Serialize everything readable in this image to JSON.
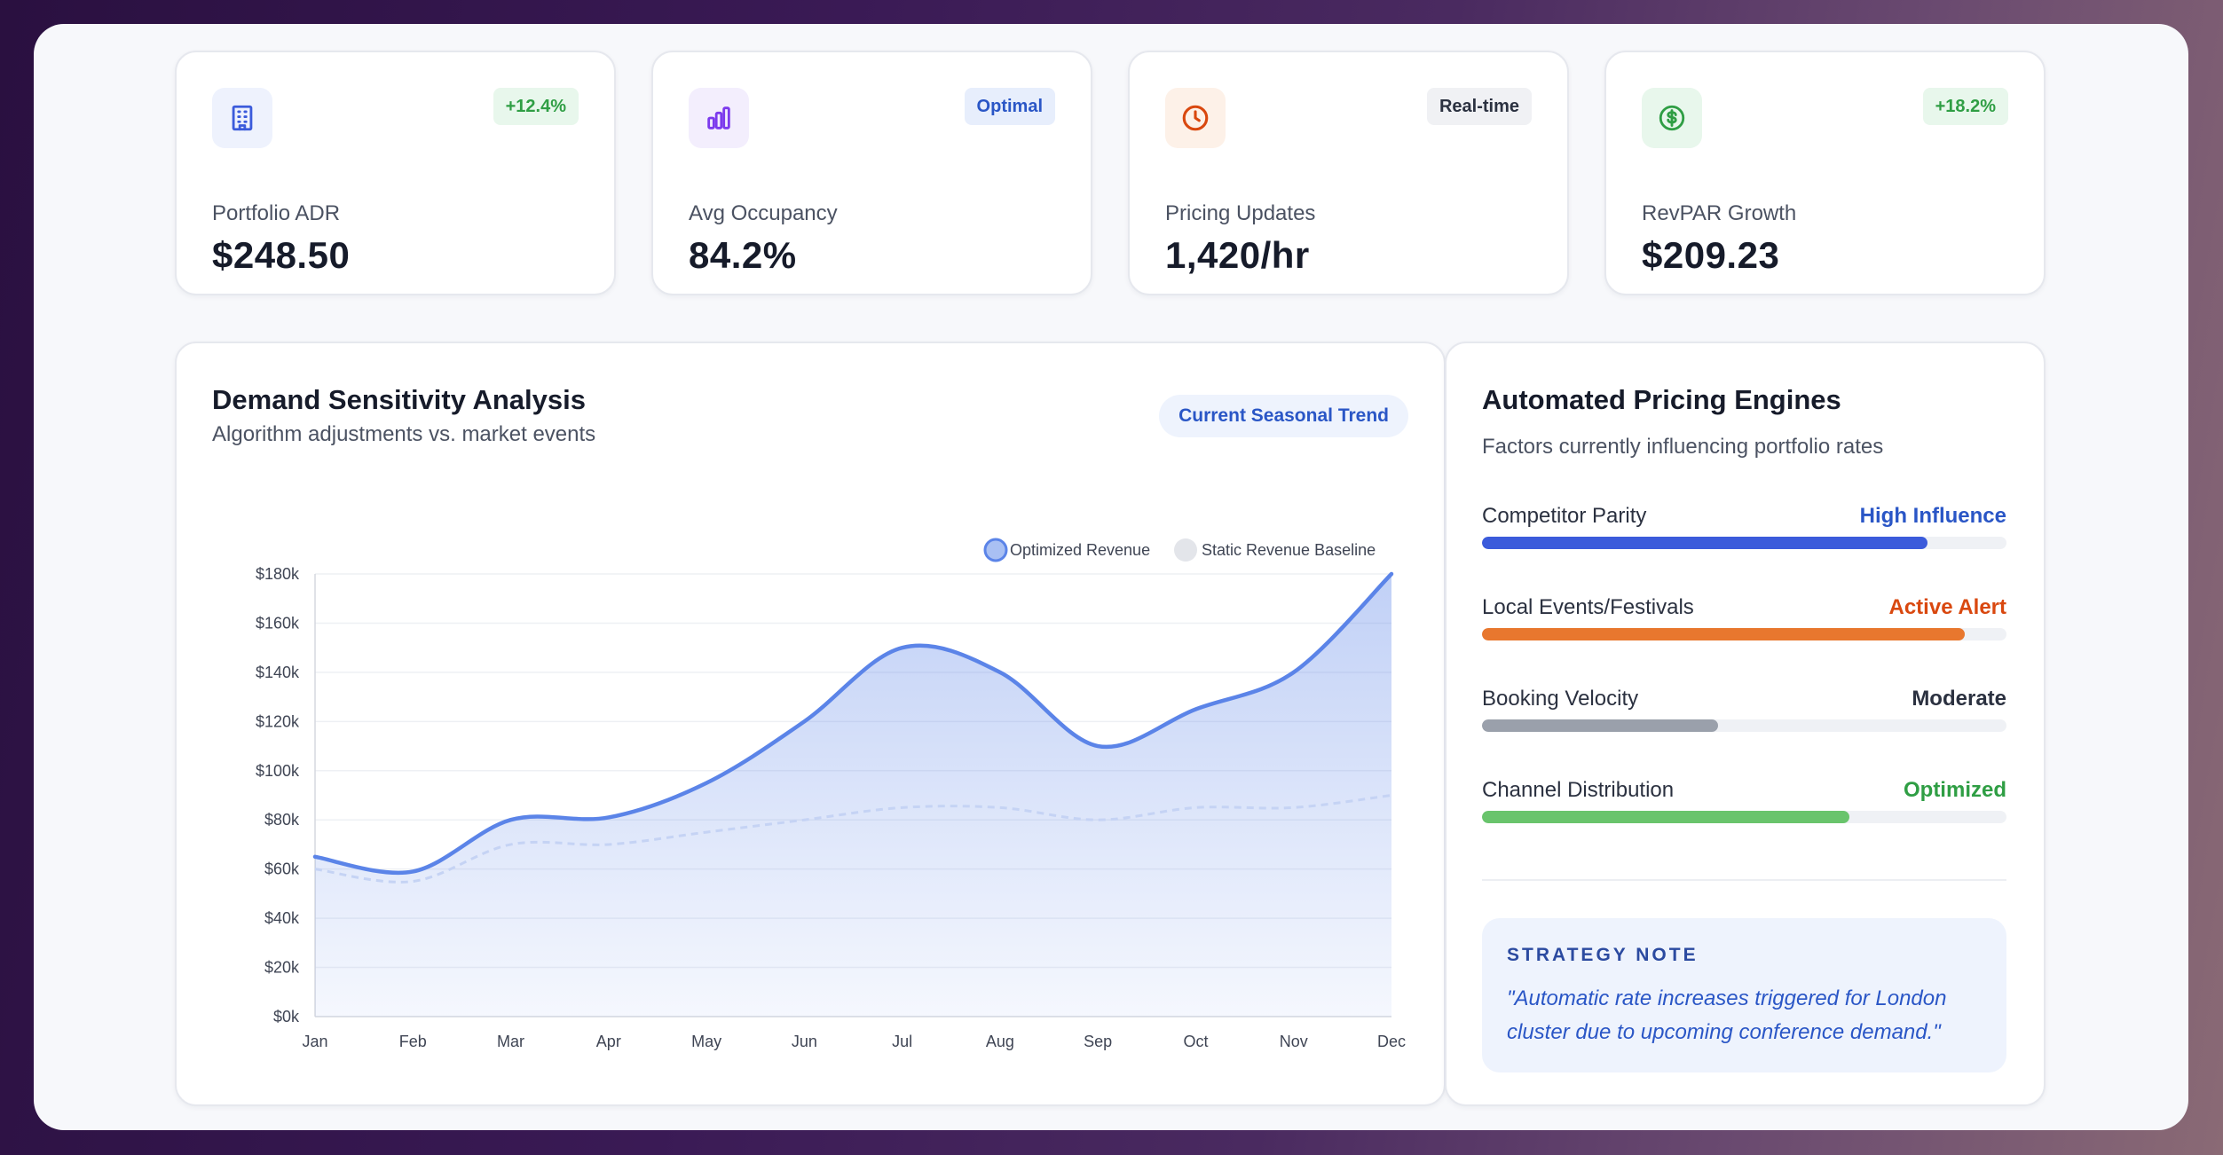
{
  "stats": [
    {
      "label": "Portfolio ADR",
      "value": "$248.50",
      "badge": "+12.4%",
      "icon": "building-icon",
      "icon_color": "#3b5bdb",
      "icon_bg": "#eef2fd",
      "badge_color": "#2f9e44",
      "badge_bg": "#e8f7ec"
    },
    {
      "label": "Avg Occupancy",
      "value": "84.2%",
      "badge": "Optimal",
      "icon": "bar-chart-icon",
      "icon_color": "#7c3aed",
      "icon_bg": "#f3eefd",
      "badge_color": "#2a56c6",
      "badge_bg": "#e7eefc"
    },
    {
      "label": "Pricing Updates",
      "value": "1,420/hr",
      "badge": "Real-time",
      "icon": "clock-icon",
      "icon_color": "#d9480f",
      "icon_bg": "#fdf1e8",
      "badge_color": "#2b3140",
      "badge_bg": "#f0f1f4"
    },
    {
      "label": "RevPAR Growth",
      "value": "$209.23",
      "badge": "+18.2%",
      "icon": "dollar-circle-icon",
      "icon_color": "#2f9e44",
      "icon_bg": "#e8f7ec",
      "badge_color": "#2f9e44",
      "badge_bg": "#e8f7ec"
    }
  ],
  "demand": {
    "title": "Demand Sensitivity Analysis",
    "subtitle": "Algorithm adjustments vs. market events",
    "pill": "Current Seasonal Trend"
  },
  "chart_data": {
    "type": "area",
    "categories": [
      "Jan",
      "Feb",
      "Mar",
      "Apr",
      "May",
      "Jun",
      "Jul",
      "Aug",
      "Sep",
      "Oct",
      "Nov",
      "Dec"
    ],
    "series": [
      {
        "name": "Optimized Revenue",
        "values": [
          65,
          59,
          80,
          81,
          95,
          120,
          150,
          140,
          110,
          125,
          140,
          180
        ],
        "color": "#5b84e8",
        "fill": true
      },
      {
        "name": "Static Revenue Baseline",
        "values": [
          60,
          55,
          70,
          70,
          75,
          80,
          85,
          85,
          80,
          85,
          85,
          90
        ],
        "color": "#c5d3f4",
        "dashed": true
      }
    ],
    "y_ticks": [
      "$0k",
      "$20k",
      "$40k",
      "$60k",
      "$80k",
      "$100k",
      "$120k",
      "$140k",
      "$160k",
      "$180k"
    ],
    "ylim": [
      0,
      180
    ],
    "y_unit": "thousand USD",
    "legend": "top-right",
    "grid": true
  },
  "engines": {
    "title": "Automated Pricing Engines",
    "subtitle": "Factors currently influencing portfolio rates",
    "factors": [
      {
        "label": "Competitor Parity",
        "status": "High Influence",
        "status_color": "#2a56c6",
        "bar_color": "#3b5bdb",
        "level": 0.85
      },
      {
        "label": "Local Events/Festivals",
        "status": "Active Alert",
        "status_color": "#d9480f",
        "bar_color": "#e8772e",
        "level": 0.92
      },
      {
        "label": "Booking Velocity",
        "status": "Moderate",
        "status_color": "#2b3140",
        "bar_color": "#9aa0ab",
        "level": 0.45
      },
      {
        "label": "Channel Distribution",
        "status": "Optimized",
        "status_color": "#2f9e44",
        "bar_color": "#69c46c",
        "level": 0.7
      }
    ],
    "note_heading": "STRATEGY NOTE",
    "note_text": "\"Automatic rate increases triggered for London cluster due to upcoming conference demand.\""
  }
}
